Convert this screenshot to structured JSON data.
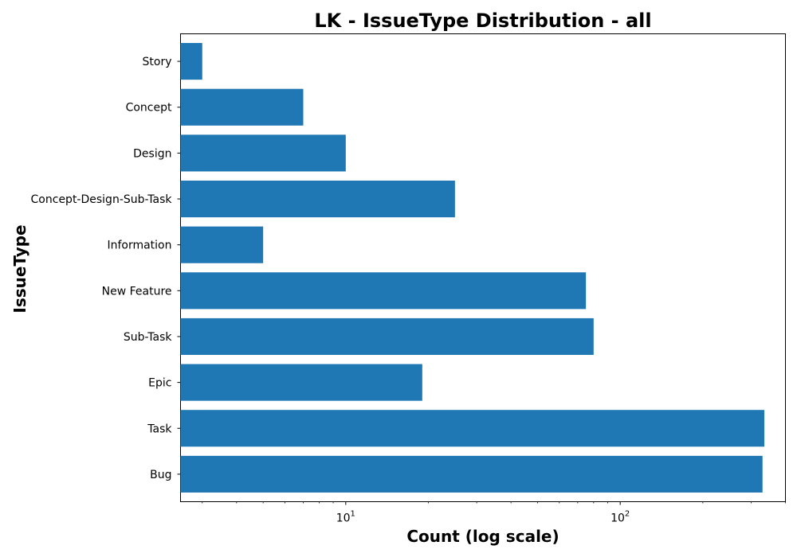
{
  "chart_data": {
    "type": "bar",
    "orientation": "horizontal",
    "title": "LK - IssueType Distribution - all",
    "xlabel": "Count (log scale)",
    "ylabel": "IssueType",
    "x_scale": "log",
    "xlim": [
      2.5,
      400
    ],
    "x_ticks": [
      {
        "value": 10,
        "base": "10",
        "exponent": "1"
      },
      {
        "value": 100,
        "base": "10",
        "exponent": "2"
      }
    ],
    "categories": [
      "Bug",
      "Task",
      "Epic",
      "Sub-Task",
      "New Feature",
      "Information",
      "Concept-Design-Sub-Task",
      "Design",
      "Concept",
      "Story"
    ],
    "values": [
      330,
      335,
      19,
      80,
      75,
      5,
      25,
      10,
      7,
      3
    ],
    "grid": false,
    "colors": {
      "bar": "#1f77b4"
    }
  }
}
